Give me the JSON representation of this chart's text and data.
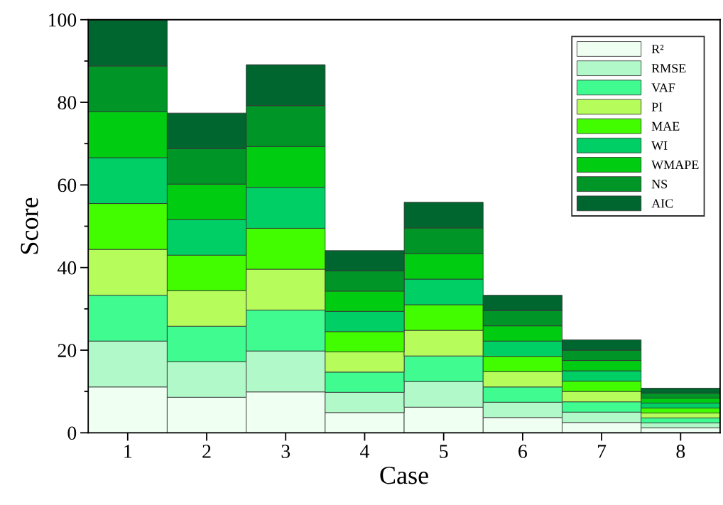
{
  "chart_data": {
    "type": "bar",
    "stacked": true,
    "xlabel": "Case",
    "ylabel": "Score",
    "categories": [
      "1",
      "2",
      "3",
      "4",
      "5",
      "6",
      "7",
      "8"
    ],
    "series": [
      {
        "name": "R²",
        "color": "#effff2",
        "values": [
          11.1,
          8.6,
          9.9,
          4.9,
          6.2,
          3.7,
          2.5,
          1.2
        ]
      },
      {
        "name": "RMSE",
        "color": "#b2f9ca",
        "values": [
          11.1,
          8.6,
          9.9,
          4.9,
          6.2,
          3.7,
          2.5,
          1.2
        ]
      },
      {
        "name": "VAF",
        "color": "#3ffb90",
        "values": [
          11.1,
          8.6,
          9.9,
          4.9,
          6.2,
          3.7,
          2.5,
          1.2
        ]
      },
      {
        "name": "PI",
        "color": "#b6fc5b",
        "values": [
          11.1,
          8.6,
          9.9,
          4.9,
          6.2,
          3.7,
          2.5,
          1.2
        ]
      },
      {
        "name": "MAE",
        "color": "#42fc00",
        "values": [
          11.1,
          8.6,
          9.9,
          4.9,
          6.2,
          3.7,
          2.5,
          1.2
        ]
      },
      {
        "name": "WI",
        "color": "#00cf66",
        "values": [
          11.1,
          8.6,
          9.9,
          4.9,
          6.2,
          3.7,
          2.5,
          1.2
        ]
      },
      {
        "name": "WMAPE",
        "color": "#00cc12",
        "values": [
          11.1,
          8.6,
          9.9,
          4.9,
          6.2,
          3.7,
          2.5,
          1.2
        ]
      },
      {
        "name": "NS",
        "color": "#009527",
        "values": [
          11.1,
          8.6,
          9.9,
          4.9,
          6.2,
          3.7,
          2.5,
          1.2
        ]
      },
      {
        "name": "AIC",
        "color": "#006630",
        "values": [
          11.1,
          8.6,
          9.9,
          4.9,
          6.2,
          3.7,
          2.5,
          1.2
        ]
      }
    ],
    "ylim": [
      0,
      100
    ],
    "yticks": [
      0,
      20,
      40,
      60,
      80,
      100
    ],
    "grid": false,
    "legend": "top right"
  }
}
